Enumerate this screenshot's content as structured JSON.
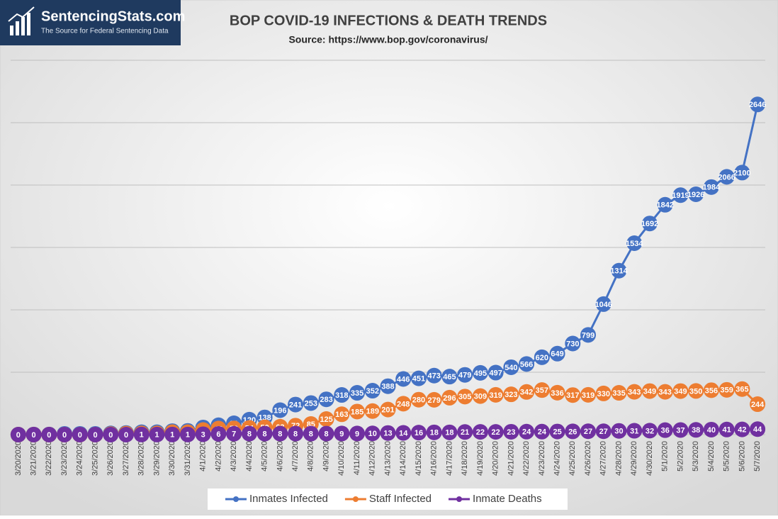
{
  "logo": {
    "name": "SentencingStats.com",
    "tagline": "The Source for Federal Sentencing Data"
  },
  "chart_data": {
    "type": "line",
    "title": "BOP COVID-19 INFECTIONS & DEATH TRENDS",
    "subtitle": "Source: https://www.bop.gov/coronavirus/",
    "categories": [
      "3/20/2020",
      "3/21/2020",
      "3/22/2020",
      "3/23/2020",
      "3/24/2020",
      "3/25/2020",
      "3/26/2020",
      "3/27/2020",
      "3/28/2020",
      "3/29/2020",
      "3/30/2020",
      "3/31/2020",
      "4/1/2020",
      "4/2/2020",
      "4/3/2020",
      "4/4/2020",
      "4/5/2020",
      "4/6/2020",
      "4/7/2020",
      "4/8/2020",
      "4/9/2020",
      "4/10/2020",
      "4/11/2020",
      "4/12/2020",
      "4/13/2020",
      "4/14/2020",
      "4/15/2020",
      "4/16/2020",
      "4/17/2020",
      "4/18/2020",
      "4/19/2020",
      "4/20/2020",
      "4/21/2020",
      "4/22/2020",
      "4/23/2020",
      "4/24/2020",
      "4/25/2020",
      "4/26/2020",
      "4/27/2020",
      "4/28/2020",
      "4/29/2020",
      "4/30/2020",
      "5/1/2020",
      "5/2/2020",
      "5/3/2020",
      "5/4/2020",
      "5/5/2020",
      "5/6/2020",
      "5/7/2020"
    ],
    "series": [
      {
        "name": "Inmates Infected",
        "color": "#4472c4",
        "values": [
          0,
          1,
          1,
          6,
          6,
          6,
          10,
          13,
          19,
          19,
          28,
          30,
          57,
          75,
          91,
          120,
          138,
          196,
          241,
          253,
          283,
          318,
          335,
          352,
          388,
          446,
          451,
          473,
          465,
          479,
          495,
          497,
          540,
          566,
          620,
          649,
          730,
          799,
          1046,
          1314,
          1534,
          1692,
          1842,
          1919,
          1926,
          1984,
          2066,
          2100,
          2646
        ]
      },
      {
        "name": "Staff Infected",
        "color": "#ed7d31",
        "values": [
          0,
          0,
          0,
          0,
          0,
          0,
          4,
          8,
          10,
          10,
          20,
          20,
          37,
          49,
          50,
          54,
          59,
          63,
          72,
          85,
          125,
          163,
          185,
          189,
          201,
          248,
          280,
          279,
          296,
          305,
          309,
          319,
          323,
          342,
          357,
          336,
          317,
          319,
          330,
          335,
          343,
          349,
          343,
          349,
          350,
          356,
          359,
          365,
          244
        ]
      },
      {
        "name": "Inmate Deaths",
        "color": "#7030a0",
        "values": [
          0,
          0,
          0,
          0,
          0,
          0,
          0,
          0,
          1,
          1,
          1,
          1,
          3,
          6,
          7,
          8,
          8,
          8,
          8,
          8,
          8,
          9,
          9,
          10,
          13,
          14,
          16,
          18,
          18,
          21,
          22,
          22,
          23,
          24,
          24,
          25,
          26,
          27,
          27,
          30,
          31,
          32,
          36,
          37,
          38,
          40,
          41,
          42,
          44
        ]
      }
    ],
    "ylim": [
      0,
      3000
    ],
    "yticks": [
      0,
      500,
      1000,
      1500,
      2000,
      2500,
      3000
    ],
    "grid": true,
    "legend": "bottom"
  }
}
